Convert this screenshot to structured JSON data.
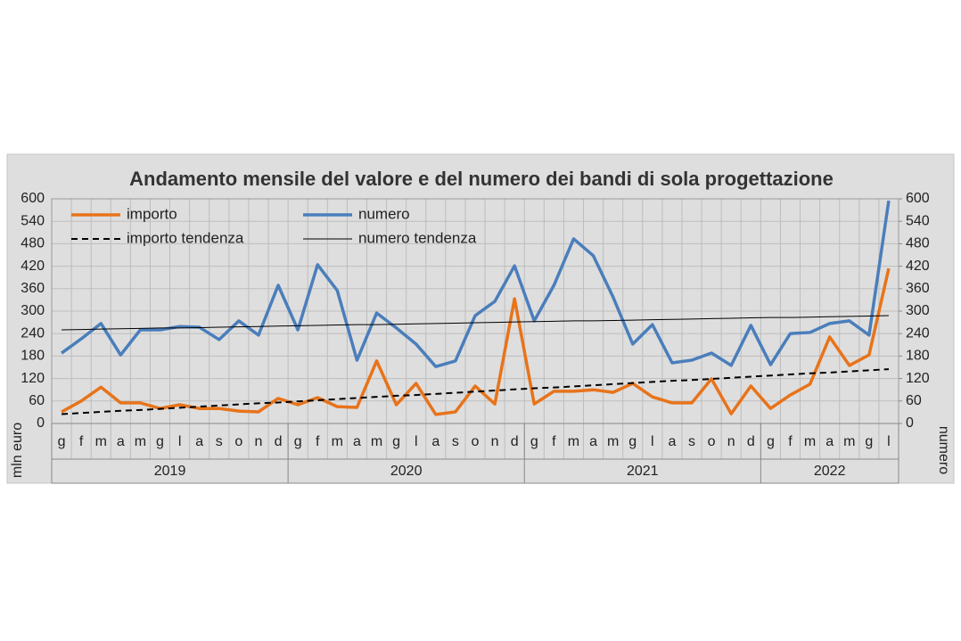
{
  "chart_data": {
    "type": "line",
    "title": "Andamento mensile del valore e del numero dei bandi di sola progettazione",
    "y_label": "mln euro",
    "y2_label": "numero",
    "categories": [
      "g",
      "f",
      "m",
      "a",
      "m",
      "g",
      "l",
      "a",
      "s",
      "o",
      "n",
      "d",
      "g",
      "f",
      "m",
      "a",
      "m",
      "g",
      "l",
      "a",
      "s",
      "o",
      "n",
      "d",
      "g",
      "f",
      "m",
      "a",
      "m",
      "g",
      "l",
      "a",
      "s",
      "o",
      "n",
      "d",
      "g",
      "f",
      "m",
      "a",
      "m",
      "g",
      "l"
    ],
    "years": [
      "2019",
      "2020",
      "2021",
      "2022"
    ],
    "series": [
      {
        "name": "importo",
        "color": "#e8731a",
        "axis": "y",
        "dash": false,
        "values": [
          31,
          60,
          97,
          55,
          55,
          40,
          50,
          40,
          40,
          33,
          31,
          67,
          50,
          69,
          45,
          43,
          167,
          50,
          107,
          24,
          31,
          100,
          52,
          333,
          52,
          86,
          86,
          90,
          83,
          107,
          71,
          55,
          55,
          119,
          26,
          100,
          40,
          76,
          105,
          231,
          155,
          183,
          414
        ]
      },
      {
        "name": "numero",
        "color": "#4a7ebb",
        "axis": "y2",
        "dash": false,
        "values": [
          188,
          226,
          267,
          183,
          250,
          250,
          259,
          257,
          224,
          274,
          236,
          369,
          250,
          424,
          355,
          169,
          295,
          255,
          212,
          152,
          167,
          288,
          326,
          421,
          274,
          369,
          493,
          448,
          338,
          212,
          264,
          162,
          169,
          188,
          155,
          262,
          157,
          240,
          243,
          267,
          274,
          236,
          595
        ]
      },
      {
        "name": "importo tendenza",
        "color": "#000000",
        "axis": "y",
        "dash": true,
        "values": [
          25,
          28,
          31,
          34,
          36,
          39,
          42,
          45,
          48,
          51,
          54,
          56,
          59,
          62,
          65,
          68,
          71,
          74,
          76,
          79,
          82,
          85,
          88,
          91,
          94,
          96,
          99,
          102,
          105,
          108,
          111,
          114,
          116,
          119,
          122,
          125,
          128,
          131,
          134,
          136,
          139,
          142,
          145
        ]
      },
      {
        "name": "numero tendenza",
        "color": "#000000",
        "axis": "y2",
        "dash": false,
        "values": [
          250,
          251,
          252,
          253,
          254,
          255,
          255,
          256,
          257,
          258,
          259,
          260,
          261,
          262,
          263,
          264,
          264,
          265,
          266,
          267,
          268,
          269,
          270,
          271,
          272,
          273,
          274,
          274,
          275,
          276,
          277,
          278,
          279,
          280,
          281,
          282,
          283,
          283,
          284,
          285,
          286,
          287,
          288
        ]
      }
    ],
    "ylim": [
      0,
      600
    ],
    "yticks": [
      0,
      60,
      120,
      180,
      240,
      300,
      360,
      420,
      480,
      540,
      600
    ],
    "y2lim": [
      0,
      600
    ],
    "y2ticks": [
      0,
      60,
      120,
      180,
      240,
      300,
      360,
      420,
      480,
      540,
      600
    ],
    "grid": true
  }
}
